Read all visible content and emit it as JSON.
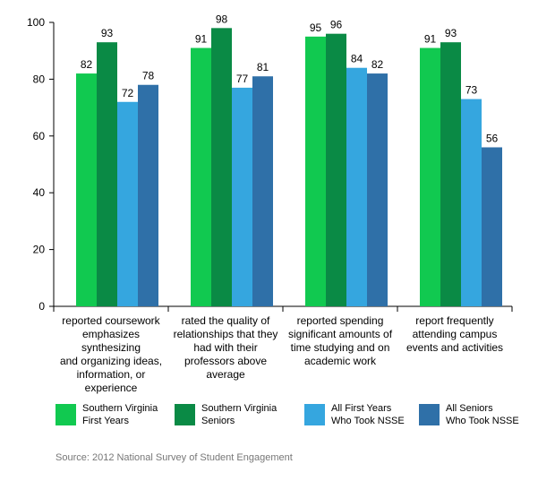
{
  "chart_data": {
    "type": "bar",
    "categories": [
      "reported coursework emphasizes synthesizing and organizing ideas, information, or experience",
      "rated the quality of relationships that they had with their professors above average",
      "reported spending significant amounts of time studying and on academic work",
      "report frequently attending campus events and activities"
    ],
    "category_lines": [
      [
        "reported coursework",
        "emphasizes synthesizing",
        "and organizing ideas,",
        "information, or",
        "experience"
      ],
      [
        "rated the quality of",
        "relationships that they",
        "had with their",
        "professors above",
        "average"
      ],
      [
        "reported spending",
        "significant amounts of",
        "time studying and on",
        "academic work"
      ],
      [
        "report frequently",
        "attending campus",
        "events and activities"
      ]
    ],
    "series": [
      {
        "name": "Southern Virginia First Years",
        "legend_lines": [
          "Southern Virginia",
          "First Years"
        ],
        "color": "#11c950",
        "values": [
          82,
          91,
          95,
          91
        ]
      },
      {
        "name": "Southern Virginia Seniors",
        "legend_lines": [
          "Southern Virginia",
          "Seniors"
        ],
        "color": "#0a8a45",
        "values": [
          93,
          98,
          96,
          93
        ]
      },
      {
        "name": "All First Years Who Took NSSE",
        "legend_lines": [
          "All First Years",
          "Who Took NSSE"
        ],
        "color": "#35a6df",
        "values": [
          72,
          77,
          84,
          73
        ]
      },
      {
        "name": "All Seniors Who Took NSSE",
        "legend_lines": [
          "All Seniors",
          "Who Took NSSE"
        ],
        "color": "#2f70a8",
        "values": [
          78,
          81,
          82,
          56
        ]
      }
    ],
    "yticks": [
      0,
      20,
      40,
      60,
      80,
      100
    ],
    "ylim": [
      0,
      100
    ],
    "grid": false,
    "legend_position": "bottom",
    "title": "",
    "xlabel": "",
    "ylabel": ""
  },
  "source": "Source: 2012 National Survey of Student Engagement"
}
